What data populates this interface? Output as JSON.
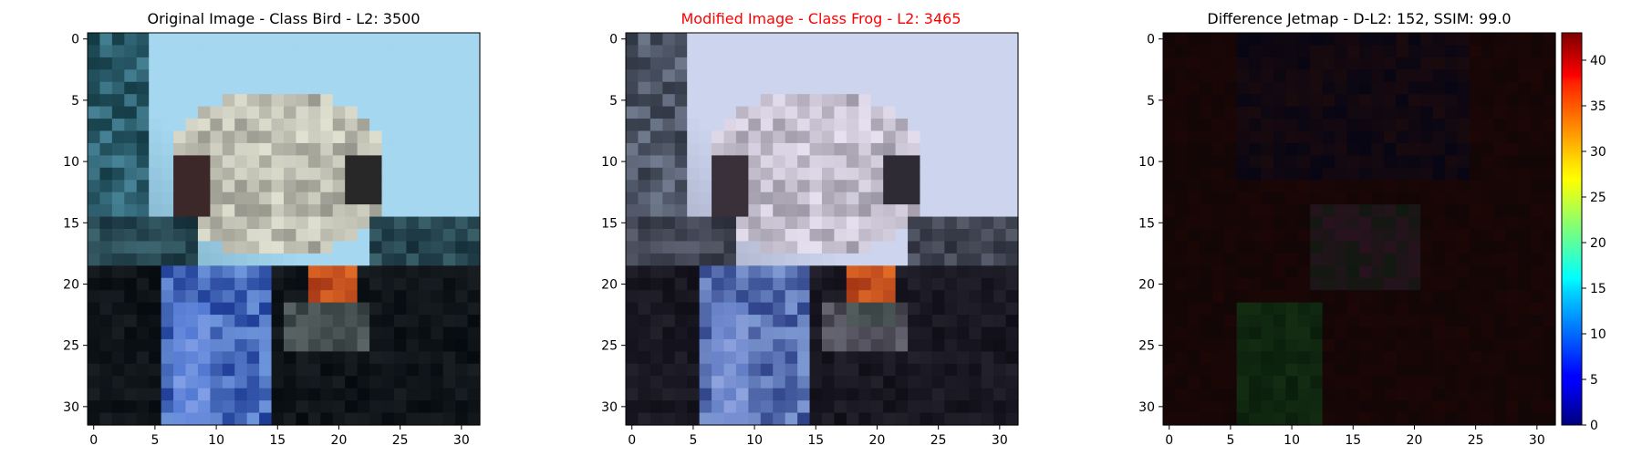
{
  "chart_data": [
    {
      "type": "heatmap",
      "title": "Original Image - Class Bird - L2: 3500",
      "title_color": "#000000",
      "xlim": [
        -0.5,
        31.5
      ],
      "ylim": [
        31.5,
        -0.5
      ],
      "xticks": [
        0,
        5,
        10,
        15,
        20,
        25,
        30
      ],
      "yticks": [
        0,
        5,
        10,
        15,
        20,
        25,
        30
      ],
      "image_summary": "32x32 RGB photo: light sky-blue top right, grey/white bird shape in center, red-orange patch near (20,21), blue legs/object bottom-left, dark bottom"
    },
    {
      "type": "heatmap",
      "title": "Modified Image - Class Frog - L2: 3465",
      "title_color": "#ff0000",
      "xlim": [
        -0.5,
        31.5
      ],
      "ylim": [
        31.5,
        -0.5
      ],
      "xticks": [
        0,
        5,
        10,
        15,
        20,
        25,
        30
      ],
      "yticks": [
        0,
        5,
        10,
        15,
        20,
        25,
        30
      ],
      "image_summary": "Same 32x32 image with desaturated greyish-lavender tones in the background"
    },
    {
      "type": "heatmap",
      "title": "Difference Jetmap - D-L2: 152, SSIM: 99.0",
      "title_color": "#000000",
      "xlim": [
        -0.5,
        31.5
      ],
      "ylim": [
        31.5,
        -0.5
      ],
      "xticks": [
        0,
        5,
        10,
        15,
        20,
        25,
        30
      ],
      "yticks": [
        0,
        5,
        10,
        15,
        20,
        25,
        30
      ],
      "colormap": "jet",
      "colorbar": {
        "vmin": 0,
        "vmax": 43,
        "ticks": [
          0,
          5,
          10,
          15,
          20,
          25,
          30,
          35,
          40
        ]
      },
      "image_summary": "Nearly black difference map with faint dark-red, dark-blue and dark-green regions"
    }
  ]
}
